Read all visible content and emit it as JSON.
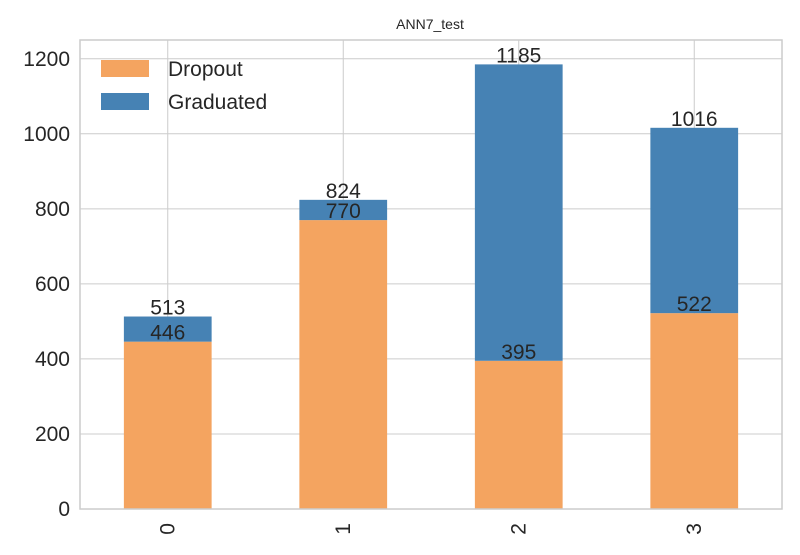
{
  "chart_data": {
    "type": "bar",
    "stacked": true,
    "title": "ANN7_test",
    "xlabel": "",
    "ylabel": "",
    "categories": [
      "0",
      "1",
      "2",
      "3"
    ],
    "series": [
      {
        "name": "Dropout",
        "values": [
          446,
          770,
          395,
          522
        ],
        "color": "#f4a460"
      },
      {
        "name": "Graduated",
        "values": [
          67,
          54,
          790,
          494
        ],
        "color": "#4682b4"
      }
    ],
    "segment_labels": {
      "Dropout": [
        "446",
        "770",
        "395",
        "522"
      ],
      "Graduated": [
        "513",
        "824",
        "1185",
        "1016"
      ]
    },
    "ylim": [
      0,
      1250
    ],
    "yticks": [
      0,
      200,
      400,
      600,
      800,
      1000,
      1200
    ],
    "grid": true,
    "legend_position": "top-left"
  }
}
